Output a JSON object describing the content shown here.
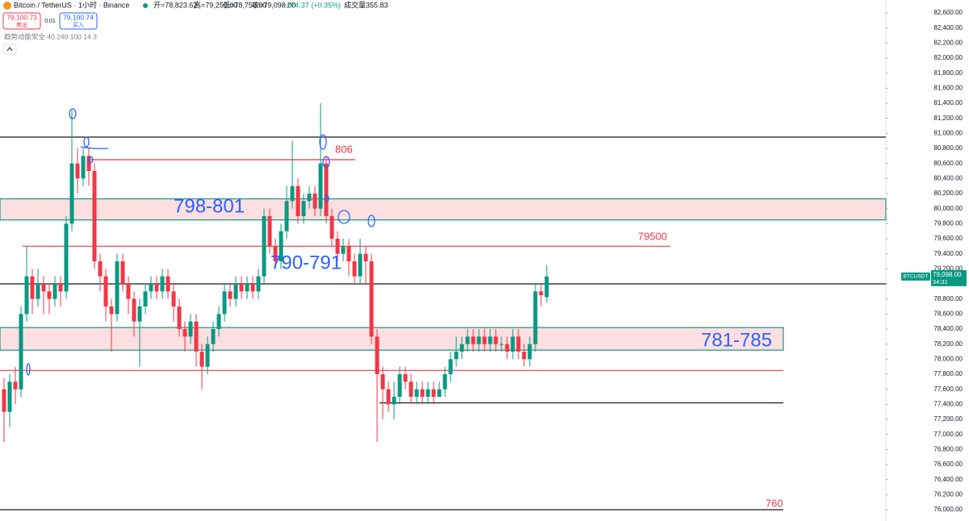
{
  "header": {
    "symbol": "Bitcoin / TetherUS · 1小时 · Binance",
    "ohlc": [
      "开=78,823.62",
      "高=79,250.00",
      "低=78,750.00",
      "收=79,098.00",
      "+274.37 (+0.35%)",
      "成交量355.83"
    ],
    "sell_price": "79,100.73",
    "sell_label": "卖出",
    "spread": "0.01",
    "buy_price": "79,100.74",
    "buy_label": "买入",
    "indicator": "趋势动能安全 40 240 100 14 3"
  },
  "chart_data": {
    "type": "candlestick",
    "up_color": "#089981",
    "down_color": "#f23645",
    "open": [
      77600,
      77300,
      77700,
      77600,
      78600,
      79100,
      78800,
      79000,
      78900,
      78800,
      79000,
      78900,
      79800,
      80600,
      80400,
      80700,
      80500,
      79300,
      79100,
      78700,
      78600,
      79300,
      79000,
      78800,
      78500,
      78700,
      78900,
      79000,
      78900,
      79100,
      78900,
      78700,
      78400,
      78300,
      78500,
      78100,
      77900,
      78200,
      78400,
      78600,
      78900,
      78800,
      79000,
      78900,
      79000,
      78900,
      79100,
      79900,
      79500,
      79300,
      79700,
      80100,
      80300,
      79900,
      80100,
      80200,
      80000,
      80600,
      79900,
      79600,
      79400,
      79500,
      79300,
      79100,
      79400,
      79300,
      78300,
      77800,
      77600,
      77400,
      77500,
      77800,
      77700,
      77500,
      77600,
      77500,
      77600,
      77500,
      77600,
      77800,
      78000,
      78100,
      78200,
      78300,
      78200,
      78300,
      78200,
      78300,
      78200,
      78200,
      78100,
      78300,
      78100,
      78000,
      78200,
      78900,
      78823.62
    ],
    "high": [
      77750,
      77800,
      77900,
      78700,
      79500,
      79200,
      79200,
      79100,
      79000,
      79100,
      79100,
      79900,
      81300,
      80800,
      80800,
      80800,
      80600,
      79400,
      79200,
      78800,
      79400,
      79400,
      79100,
      78900,
      78800,
      79000,
      79100,
      79100,
      79200,
      79200,
      79000,
      78800,
      78500,
      78600,
      78600,
      78200,
      78300,
      78500,
      78700,
      79000,
      79000,
      79100,
      79100,
      79100,
      79100,
      79200,
      80000,
      80000,
      79600,
      79800,
      80300,
      80900,
      80400,
      80200,
      80300,
      80300,
      81400,
      80700,
      80000,
      79700,
      79600,
      79600,
      79400,
      79600,
      79500,
      79400,
      78400,
      77900,
      77700,
      77700,
      77900,
      77900,
      77800,
      77700,
      77700,
      77700,
      77700,
      77700,
      77900,
      78100,
      78300,
      78300,
      78400,
      78400,
      78400,
      78400,
      78400,
      78400,
      78300,
      78300,
      78400,
      78400,
      78200,
      78300,
      79000,
      79000,
      79250
    ],
    "low": [
      76900,
      77100,
      77400,
      77500,
      78500,
      78600,
      78700,
      78600,
      78600,
      78700,
      78700,
      78800,
      79700,
      80200,
      80300,
      80300,
      79200,
      78900,
      78500,
      78100,
      78500,
      78900,
      78600,
      78300,
      77900,
      78600,
      78800,
      78800,
      78800,
      78800,
      78500,
      78300,
      78100,
      78200,
      77900,
      77600,
      77800,
      78100,
      78300,
      78500,
      78700,
      78700,
      78800,
      78800,
      78800,
      78800,
      79000,
      79400,
      79200,
      79200,
      79600,
      80000,
      79800,
      79800,
      80000,
      79900,
      79900,
      79800,
      79500,
      79300,
      79300,
      79100,
      79000,
      79000,
      79000,
      78200,
      76900,
      77200,
      77300,
      77200,
      77400,
      77600,
      77400,
      77400,
      77400,
      77400,
      77400,
      77500,
      77500,
      77700,
      77900,
      78000,
      78100,
      78100,
      78100,
      78100,
      78100,
      78100,
      78100,
      78000,
      78000,
      78000,
      77900,
      77900,
      78100,
      78700,
      78750
    ],
    "close": [
      77300,
      77700,
      77600,
      78600,
      79100,
      78800,
      79000,
      78900,
      78800,
      79000,
      78900,
      79800,
      80600,
      80400,
      80700,
      80500,
      79300,
      79100,
      78700,
      78600,
      79300,
      79000,
      78800,
      78500,
      78700,
      78900,
      79000,
      78900,
      79100,
      78900,
      78700,
      78400,
      78300,
      78500,
      78100,
      77900,
      78200,
      78400,
      78600,
      78900,
      78800,
      79000,
      78900,
      79000,
      78900,
      79100,
      79900,
      79500,
      79300,
      79700,
      80100,
      80300,
      79900,
      80100,
      80200,
      80000,
      80600,
      79900,
      79600,
      79400,
      79500,
      79300,
      79100,
      79400,
      79300,
      78300,
      77800,
      77600,
      77400,
      77500,
      77800,
      77700,
      77500,
      77600,
      77500,
      77600,
      77500,
      77600,
      77800,
      78000,
      78100,
      78200,
      78300,
      78200,
      78300,
      78200,
      78300,
      78200,
      78200,
      78100,
      78300,
      78100,
      78000,
      78200,
      78900,
      78850,
      79098
    ],
    "ylim": [
      76000,
      82600
    ],
    "yticks": [
      {
        "value": 76000,
        "label": "76,000.00"
      },
      {
        "value": 76200,
        "label": "76,200.00"
      },
      {
        "value": 76400,
        "label": "76,400.00"
      },
      {
        "value": 76600,
        "label": "76,600.00"
      },
      {
        "value": 76800,
        "label": "76,800.00"
      },
      {
        "value": 77000,
        "label": "77,000.00"
      },
      {
        "value": 77200,
        "label": "77,200.00"
      },
      {
        "value": 77400,
        "label": "77,400.00"
      },
      {
        "value": 77600,
        "label": "77,600.00"
      },
      {
        "value": 77800,
        "label": "77,800.00"
      },
      {
        "value": 78000,
        "label": "78,000.00"
      },
      {
        "value": 78200,
        "label": "78,200.00"
      },
      {
        "value": 78400,
        "label": "78,400.00"
      },
      {
        "value": 78600,
        "label": "78,600.00"
      },
      {
        "value": 78800,
        "label": "78,800.00"
      },
      {
        "value": 79000,
        "label": "79,000.00"
      },
      {
        "value": 79200,
        "label": "79,200.00"
      },
      {
        "value": 79400,
        "label": "79,400.00"
      },
      {
        "value": 79600,
        "label": "79,600.00"
      },
      {
        "value": 79800,
        "label": "79,800.00"
      },
      {
        "value": 80000,
        "label": "80,000.00"
      },
      {
        "value": 80200,
        "label": "80,200.00"
      },
      {
        "value": 80400,
        "label": "80,400.00"
      },
      {
        "value": 80600,
        "label": "80,600.00"
      },
      {
        "value": 80800,
        "label": "80,800.00"
      },
      {
        "value": 81000,
        "label": "81,000.00"
      },
      {
        "value": 81200,
        "label": "81,200.00"
      },
      {
        "value": 81400,
        "label": "81,400.00"
      },
      {
        "value": 81600,
        "label": "81,600.00"
      },
      {
        "value": 81800,
        "label": "81,800.00"
      },
      {
        "value": 82000,
        "label": "82,000.00"
      },
      {
        "value": 82200,
        "label": "82,200.00"
      },
      {
        "value": 82400,
        "label": "82,400.00"
      },
      {
        "value": 82600,
        "label": "82,600.00"
      }
    ],
    "price_label": {
      "symbol": "BTCUSDT",
      "price": "79,098.00",
      "countdown": "34:31"
    },
    "levels": [
      {
        "price": 80950,
        "color": "#131722"
      },
      {
        "price": 80650,
        "color": "#f23645"
      },
      {
        "price": 79500,
        "color": "#f23645"
      },
      {
        "price": 79000,
        "color": "#131722"
      },
      {
        "price": 77850,
        "color": "#f23645"
      },
      {
        "price": 77420,
        "color": "#131722"
      },
      {
        "price": 76000,
        "color": "#131722"
      }
    ],
    "zones": [
      {
        "low": 79850,
        "high": 80130
      },
      {
        "low": 78120,
        "high": 78420
      }
    ],
    "annotations": [
      "806",
      "79500",
      "760",
      "798-801",
      "790-791",
      "781-785"
    ]
  }
}
